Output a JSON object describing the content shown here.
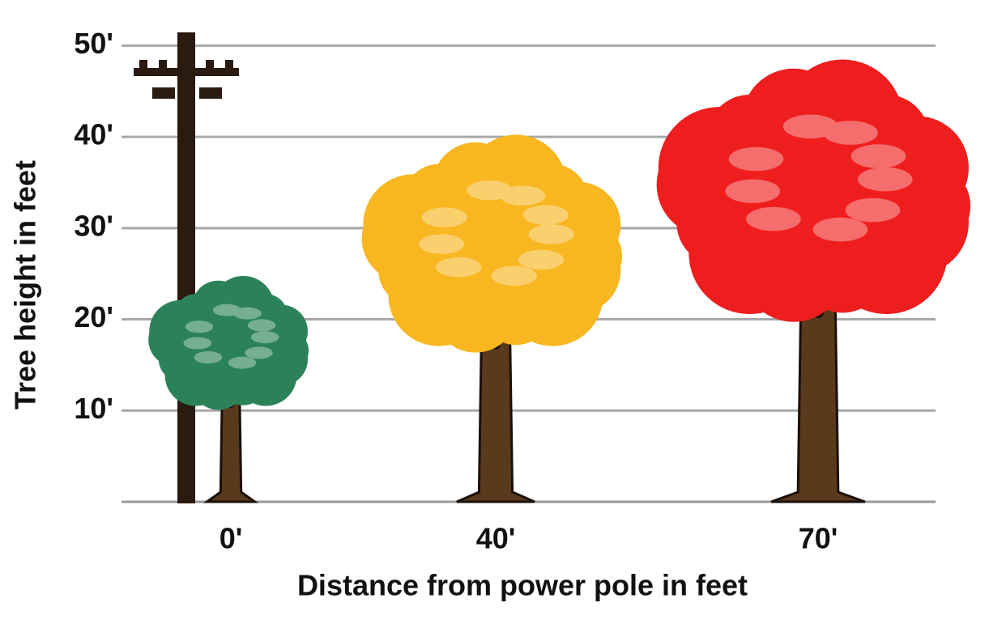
{
  "chart_data": {
    "type": "pictograph",
    "categories": [
      "0'",
      "40'",
      "70'"
    ],
    "values": [
      24,
      39,
      47
    ],
    "colors": [
      "#2b8259",
      "#f8b620",
      "#ef1e1e"
    ],
    "xlabel": "Distance from power pole in feet",
    "ylabel": "Tree height in feet",
    "ylim": [
      0,
      55
    ],
    "yticks": [
      {
        "value": 10,
        "label": "10'"
      },
      {
        "value": 20,
        "label": "20'"
      },
      {
        "value": 30,
        "label": "30'"
      },
      {
        "value": 40,
        "label": "40'"
      },
      {
        "value": 50,
        "label": "50'"
      }
    ],
    "grid": true
  }
}
